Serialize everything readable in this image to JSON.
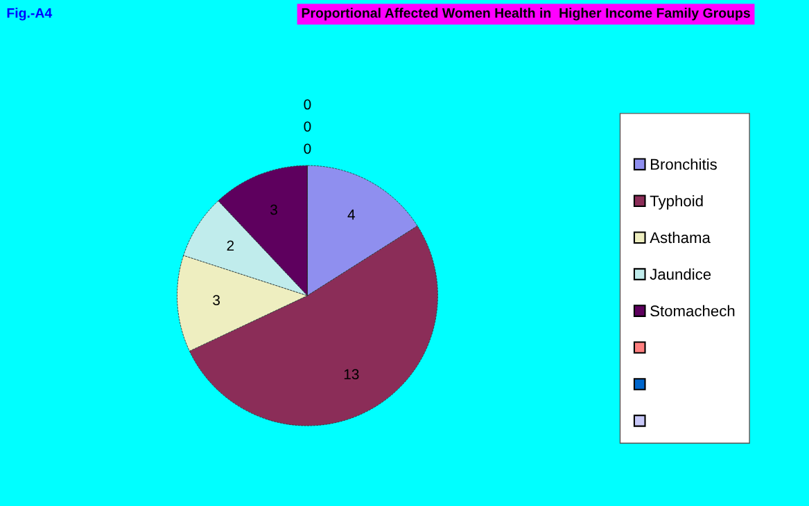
{
  "chart_data": {
    "type": "pie",
    "title": "Proportional Affected Women Health in  Higher Income Family Groups",
    "annotations": [
      "Fig.-A4"
    ],
    "categories": [
      "Bronchitis",
      "Typhoid",
      "Asthama",
      "Jaundice",
      "Stomachech",
      null,
      null,
      null
    ],
    "values": [
      4,
      13,
      3,
      2,
      3,
      0,
      0,
      0
    ],
    "colors": [
      "#8f8fef",
      "#8b2d58",
      "#eeeec0",
      "#c0ecec",
      "#5e005e",
      "#ff8080",
      "#0066cc",
      "#c8c8f8"
    ],
    "value_labels": [
      "4",
      "13",
      "3",
      "2",
      "3",
      "0",
      "0",
      "0"
    ],
    "legend": "right"
  }
}
